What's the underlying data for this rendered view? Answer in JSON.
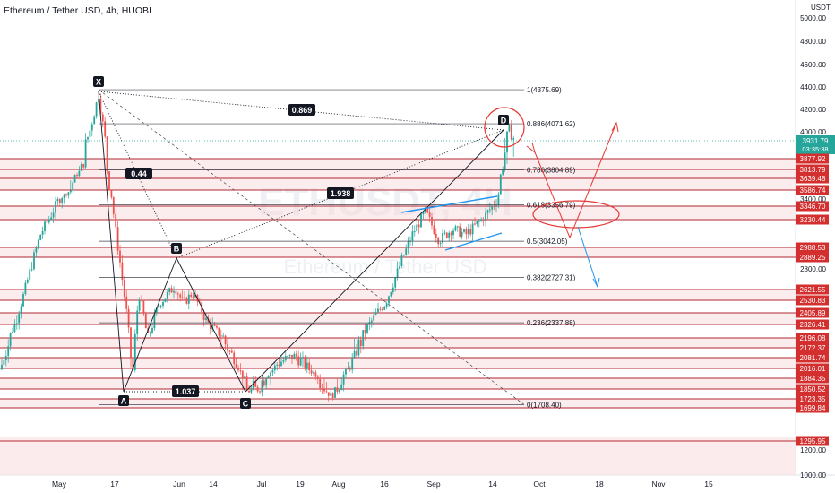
{
  "header": {
    "title": "Ethereum / Tether USD, 4h, HUOBI",
    "currency": "USDT"
  },
  "watermark": {
    "symbol": "ETHUSDT, 4H",
    "name": "Ethereum / Tether USD"
  },
  "chart_data": {
    "type": "candlestick",
    "x": [
      "May",
      "17",
      "Jun",
      "14",
      "Jul",
      "19",
      "Aug",
      "16",
      "Sep",
      "14",
      "Oct",
      "18",
      "Nov",
      "15"
    ],
    "y_axis_ticks": [
      "5000.00",
      "4800.00",
      "4600.00",
      "4400.00",
      "4200.00",
      "4000.00",
      "3400.00",
      "2800.00",
      "1200.00",
      "1000.00"
    ],
    "ylim": [
      1000,
      5100
    ],
    "last_price": {
      "value": "3931.79",
      "countdown": "03:35:38"
    },
    "price_levels": [
      "3877.92",
      "3813.79",
      "3639.48",
      "3586.74",
      "3346.70",
      "3230.44",
      "2988.53",
      "2889.25",
      "2621.55",
      "2530.83",
      "2405.89",
      "2326.41",
      "2196.08",
      "2172.37",
      "2081.74",
      "2016.01",
      "1884.35",
      "1850.52",
      "1723.35",
      "1699.84",
      "1295.95"
    ],
    "fib_levels": [
      {
        "label": "1(4375.69)",
        "value": 4375.69
      },
      {
        "label": "0.886(4071.62)",
        "value": 4071.62
      },
      {
        "label": "0.786(3804.89)",
        "value": 3804.89
      },
      {
        "label": "0.618(3356.79)",
        "value": 3356.79
      },
      {
        "label": "0.5(3042.05)",
        "value": 3042.05
      },
      {
        "label": "0.382(2727.31)",
        "value": 2727.31
      },
      {
        "label": "0.236(2337.88)",
        "value": 2337.88
      },
      {
        "label": "0(1708.40)",
        "value": 1708.4
      }
    ],
    "pattern_points": [
      "X",
      "A",
      "B",
      "C",
      "D"
    ],
    "ratios": [
      "0.869",
      "0.44",
      "1.938",
      "1.037"
    ]
  }
}
